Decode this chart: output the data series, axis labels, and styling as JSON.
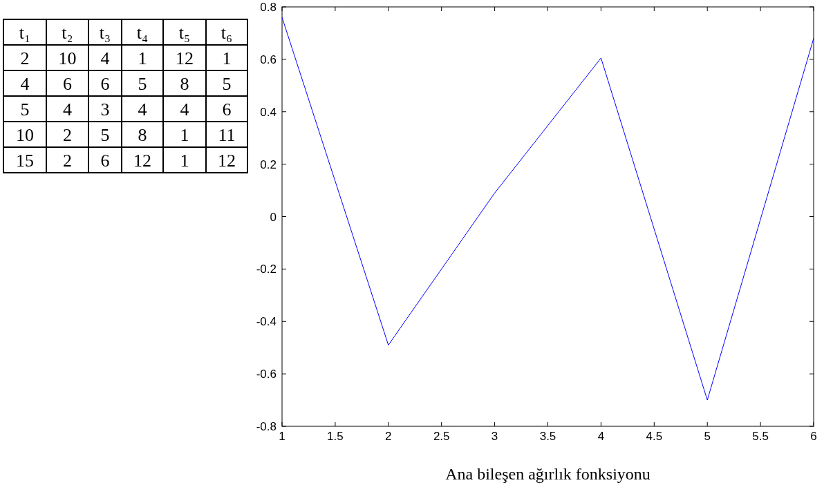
{
  "chart_data": [
    {
      "type": "heatmap",
      "data_labels": true,
      "categories": [
        "t₁",
        "t₂",
        "t₃",
        "t₄",
        "t₅",
        "t₆"
      ],
      "y_categories": [
        null,
        null,
        null,
        null,
        null
      ],
      "cells": [
        [
          2,
          10,
          4,
          1,
          12,
          1
        ],
        [
          4,
          6,
          6,
          5,
          8,
          5
        ],
        [
          5,
          4,
          3,
          4,
          4,
          6
        ],
        [
          10,
          2,
          5,
          8,
          1,
          11
        ],
        [
          15,
          2,
          6,
          12,
          1,
          12
        ]
      ]
    },
    {
      "type": "line",
      "xlabel": "Ana bileşen ağırlık fonksiyonu",
      "x": [
        1,
        2,
        3,
        4,
        5,
        6
      ],
      "series": [
        {
          "color": "#0000ff",
          "values": [
            0.76,
            -0.49,
            0.09,
            0.605,
            -0.7,
            0.68
          ]
        }
      ],
      "xlim": [
        1,
        6
      ],
      "xticks": [
        1,
        1.5,
        2,
        2.5,
        3,
        3.5,
        4,
        4.5,
        5,
        5.5,
        6
      ],
      "ylim": [
        -0.8,
        0.8
      ],
      "yticks": [
        -0.8,
        -0.6,
        -0.4,
        -0.2,
        0,
        0.2,
        0.4,
        0.6,
        0.8
      ],
      "grid": false,
      "marker": "none",
      "line_style": "solid"
    }
  ]
}
